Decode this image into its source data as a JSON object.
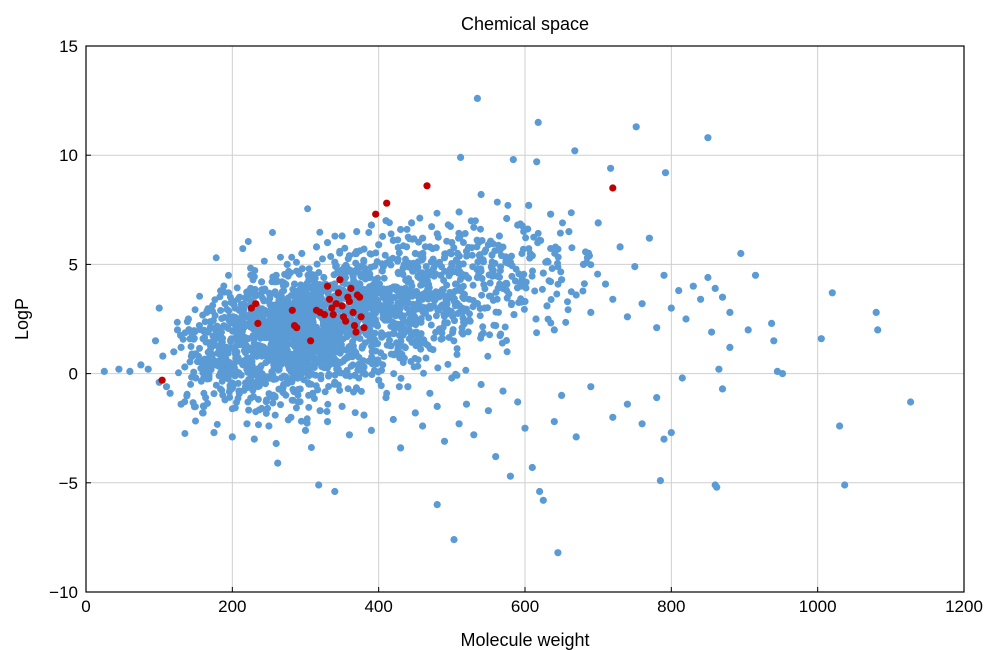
{
  "chart_data": {
    "type": "scatter",
    "title": "Chemical space",
    "xlabel": "Molecule weight",
    "ylabel": "LogP",
    "xlim": [
      0,
      1200
    ],
    "ylim": [
      -10,
      15
    ],
    "xticks": [
      0,
      200,
      400,
      600,
      800,
      1000,
      1200
    ],
    "yticks": [
      -10,
      -5,
      0,
      5,
      10,
      15
    ],
    "grid": true,
    "colors": {
      "blue": "#5b9bd5",
      "red": "#c00000"
    },
    "series": [
      {
        "color": "#5b9bd5",
        "points": [
          [
            25,
            0.1
          ],
          [
            45,
            0.2
          ],
          [
            60,
            0.1
          ],
          [
            75,
            0.4
          ],
          [
            85,
            0.2
          ],
          [
            95,
            1.5
          ],
          [
            100,
            3.0
          ],
          [
            105,
            0.8
          ],
          [
            110,
            -0.6
          ],
          [
            120,
            1.0
          ],
          [
            125,
            2.0
          ],
          [
            130,
            1.2
          ],
          [
            135,
            0.3
          ],
          [
            140,
            2.5
          ],
          [
            145,
            1.8
          ],
          [
            150,
            0.9
          ],
          [
            155,
            2.2
          ],
          [
            160,
            1.6
          ],
          [
            165,
            2.8
          ],
          [
            170,
            1.3
          ],
          [
            175,
            0.6
          ],
          [
            180,
            2.1
          ],
          [
            185,
            1.9
          ],
          [
            190,
            3.2
          ],
          [
            195,
            1.1
          ],
          [
            200,
            2.4
          ],
          [
            205,
            0.7
          ],
          [
            210,
            3.5
          ],
          [
            215,
            1.7
          ],
          [
            220,
            2.6
          ],
          [
            225,
            3.9
          ],
          [
            230,
            1.4
          ],
          [
            235,
            2.9
          ],
          [
            240,
            4.2
          ],
          [
            245,
            2.0
          ],
          [
            250,
            3.3
          ],
          [
            255,
            1.5
          ],
          [
            260,
            4.5
          ],
          [
            265,
            2.7
          ],
          [
            270,
            3.8
          ],
          [
            275,
            5.0
          ],
          [
            280,
            2.3
          ],
          [
            285,
            4.1
          ],
          [
            290,
            3.0
          ],
          [
            295,
            5.5
          ],
          [
            300,
            3.6
          ],
          [
            305,
            4.8
          ],
          [
            310,
            2.4
          ],
          [
            315,
            5.8
          ],
          [
            320,
            3.9
          ],
          [
            325,
            4.4
          ],
          [
            330,
            6.0
          ],
          [
            335,
            3.2
          ],
          [
            340,
            5.1
          ],
          [
            345,
            4.6
          ],
          [
            350,
            6.3
          ],
          [
            355,
            3.7
          ],
          [
            360,
            5.4
          ],
          [
            365,
            4.0
          ],
          [
            370,
            6.5
          ],
          [
            375,
            4.9
          ],
          [
            380,
            5.7
          ],
          [
            385,
            3.4
          ],
          [
            390,
            6.8
          ],
          [
            395,
            4.3
          ],
          [
            400,
            5.9
          ],
          [
            405,
            4.7
          ],
          [
            410,
            7.0
          ],
          [
            415,
            5.2
          ],
          [
            420,
            6.1
          ],
          [
            425,
            3.8
          ],
          [
            430,
            6.6
          ],
          [
            435,
            5.0
          ],
          [
            440,
            4.2
          ],
          [
            445,
            6.9
          ],
          [
            450,
            5.5
          ],
          [
            455,
            3.6
          ],
          [
            460,
            6.2
          ],
          [
            465,
            4.9
          ],
          [
            470,
            5.8
          ],
          [
            475,
            3.1
          ],
          [
            480,
            6.4
          ],
          [
            485,
            4.5
          ],
          [
            490,
            5.3
          ],
          [
            495,
            2.9
          ],
          [
            500,
            6.0
          ],
          [
            505,
            4.1
          ],
          [
            510,
            7.4
          ],
          [
            515,
            3.5
          ],
          [
            520,
            5.6
          ],
          [
            525,
            2.4
          ],
          [
            530,
            6.7
          ],
          [
            535,
            4.4
          ],
          [
            540,
            8.2
          ],
          [
            545,
            3.0
          ],
          [
            550,
            5.9
          ],
          [
            555,
            4.8
          ],
          [
            560,
            2.2
          ],
          [
            565,
            6.3
          ],
          [
            570,
            3.9
          ],
          [
            575,
            7.1
          ],
          [
            580,
            5.1
          ],
          [
            585,
            2.7
          ],
          [
            590,
            6.8
          ],
          [
            595,
            4.0
          ],
          [
            600,
            3.3
          ],
          [
            605,
            7.7
          ],
          [
            610,
            5.4
          ],
          [
            615,
            2.5
          ],
          [
            620,
            6.1
          ],
          [
            625,
            4.6
          ],
          [
            630,
            3.1
          ],
          [
            635,
            7.3
          ],
          [
            640,
            2.0
          ],
          [
            645,
            5.7
          ],
          [
            650,
            4.3
          ],
          [
            660,
            6.5
          ],
          [
            670,
            3.6
          ],
          [
            680,
            5.0
          ],
          [
            690,
            2.8
          ],
          [
            700,
            6.9
          ],
          [
            710,
            4.1
          ],
          [
            720,
            3.4
          ],
          [
            730,
            5.8
          ],
          [
            740,
            2.6
          ],
          [
            750,
            4.9
          ],
          [
            760,
            3.2
          ],
          [
            770,
            6.2
          ],
          [
            780,
            2.1
          ],
          [
            790,
            4.5
          ],
          [
            800,
            3.0
          ],
          [
            810,
            3.8
          ],
          [
            820,
            2.5
          ],
          [
            830,
            4.0
          ],
          [
            840,
            3.4
          ],
          [
            850,
            4.4
          ],
          [
            860,
            3.9
          ],
          [
            870,
            3.5
          ],
          [
            880,
            2.8
          ],
          [
            895,
            5.5
          ],
          [
            915,
            4.5
          ],
          [
            100,
            -0.4
          ],
          [
            115,
            -0.9
          ],
          [
            130,
            -1.4
          ],
          [
            150,
            -0.2
          ],
          [
            160,
            -1.8
          ],
          [
            175,
            -2.7
          ],
          [
            190,
            -1.2
          ],
          [
            200,
            -2.9
          ],
          [
            210,
            -0.8
          ],
          [
            220,
            -2.3
          ],
          [
            230,
            -3.0
          ],
          [
            240,
            -1.6
          ],
          [
            250,
            -2.4
          ],
          [
            260,
            -3.2
          ],
          [
            270,
            -0.5
          ],
          [
            280,
            -2.0
          ],
          [
            290,
            -1.3
          ],
          [
            300,
            -2.6
          ],
          [
            310,
            -0.9
          ],
          [
            320,
            -1.7
          ],
          [
            330,
            -2.2
          ],
          [
            340,
            -0.4
          ],
          [
            350,
            -1.5
          ],
          [
            360,
            -2.8
          ],
          [
            370,
            -0.7
          ],
          [
            380,
            -1.9
          ],
          [
            390,
            -2.6
          ],
          [
            400,
            -0.3
          ],
          [
            410,
            -1.1
          ],
          [
            420,
            -2.1
          ],
          [
            430,
            -3.4
          ],
          [
            440,
            -0.6
          ],
          [
            450,
            -1.8
          ],
          [
            460,
            -2.4
          ],
          [
            470,
            -0.9
          ],
          [
            480,
            -1.5
          ],
          [
            490,
            -3.1
          ],
          [
            500,
            -0.2
          ],
          [
            510,
            -2.3
          ],
          [
            520,
            -1.4
          ],
          [
            530,
            -2.8
          ],
          [
            540,
            -0.5
          ],
          [
            550,
            -1.7
          ],
          [
            560,
            -3.8
          ],
          [
            570,
            -0.8
          ],
          [
            580,
            -4.7
          ],
          [
            590,
            -1.3
          ],
          [
            600,
            -2.5
          ],
          [
            610,
            -4.3
          ],
          [
            620,
            -5.4
          ],
          [
            625,
            -5.8
          ],
          [
            640,
            -2.2
          ],
          [
            650,
            -1.0
          ],
          [
            670,
            -2.9
          ],
          [
            690,
            -0.6
          ],
          [
            720,
            -2.0
          ],
          [
            740,
            -1.4
          ],
          [
            760,
            -2.3
          ],
          [
            780,
            -1.1
          ],
          [
            790,
            -3.0
          ],
          [
            800,
            -2.7
          ],
          [
            815,
            -0.2
          ],
          [
            262,
            -4.1
          ],
          [
            318,
            -5.1
          ],
          [
            340,
            -5.4
          ],
          [
            480,
            -6.0
          ],
          [
            503,
            -7.6
          ],
          [
            645,
            -8.2
          ],
          [
            785,
            -4.9
          ],
          [
            862,
            -5.2
          ],
          [
            535,
            12.6
          ],
          [
            618,
            11.5
          ],
          [
            752,
            11.3
          ],
          [
            850,
            10.8
          ],
          [
            512,
            9.9
          ],
          [
            584,
            9.8
          ],
          [
            616,
            9.7
          ],
          [
            668,
            10.2
          ],
          [
            717,
            9.4
          ],
          [
            792,
            9.2
          ],
          [
            905,
            2.0
          ],
          [
            937,
            2.3
          ],
          [
            940,
            1.5
          ],
          [
            945,
            0.1
          ],
          [
            952,
            0.0
          ],
          [
            1005,
            1.6
          ],
          [
            1020,
            3.7
          ],
          [
            1030,
            -2.4
          ],
          [
            1037,
            -5.1
          ],
          [
            1080,
            2.8
          ],
          [
            1082,
            2.0
          ],
          [
            1127,
            -1.3
          ],
          [
            860,
            -5.1
          ],
          [
            855,
            1.9
          ],
          [
            865,
            0.2
          ],
          [
            870,
            -0.7
          ],
          [
            880,
            1.2
          ]
        ]
      },
      {
        "color": "#c00000",
        "points": [
          [
            104,
            -0.3
          ],
          [
            226,
            3.0
          ],
          [
            232,
            3.2
          ],
          [
            235,
            2.3
          ],
          [
            282,
            2.9
          ],
          [
            285,
            2.2
          ],
          [
            288,
            2.1
          ],
          [
            307,
            1.5
          ],
          [
            315,
            2.9
          ],
          [
            320,
            2.8
          ],
          [
            326,
            2.7
          ],
          [
            330,
            4.0
          ],
          [
            333,
            3.4
          ],
          [
            336,
            3.0
          ],
          [
            338,
            2.7
          ],
          [
            342,
            3.2
          ],
          [
            345,
            3.7
          ],
          [
            347,
            4.3
          ],
          [
            350,
            3.1
          ],
          [
            352,
            2.6
          ],
          [
            355,
            2.4
          ],
          [
            358,
            3.5
          ],
          [
            360,
            3.3
          ],
          [
            362,
            3.9
          ],
          [
            365,
            2.8
          ],
          [
            367,
            2.2
          ],
          [
            369,
            1.9
          ],
          [
            371,
            3.6
          ],
          [
            374,
            3.5
          ],
          [
            376,
            2.6
          ],
          [
            380,
            2.1
          ],
          [
            396,
            7.3
          ],
          [
            411,
            7.8
          ],
          [
            466,
            8.6
          ],
          [
            720,
            8.5
          ]
        ]
      }
    ]
  }
}
